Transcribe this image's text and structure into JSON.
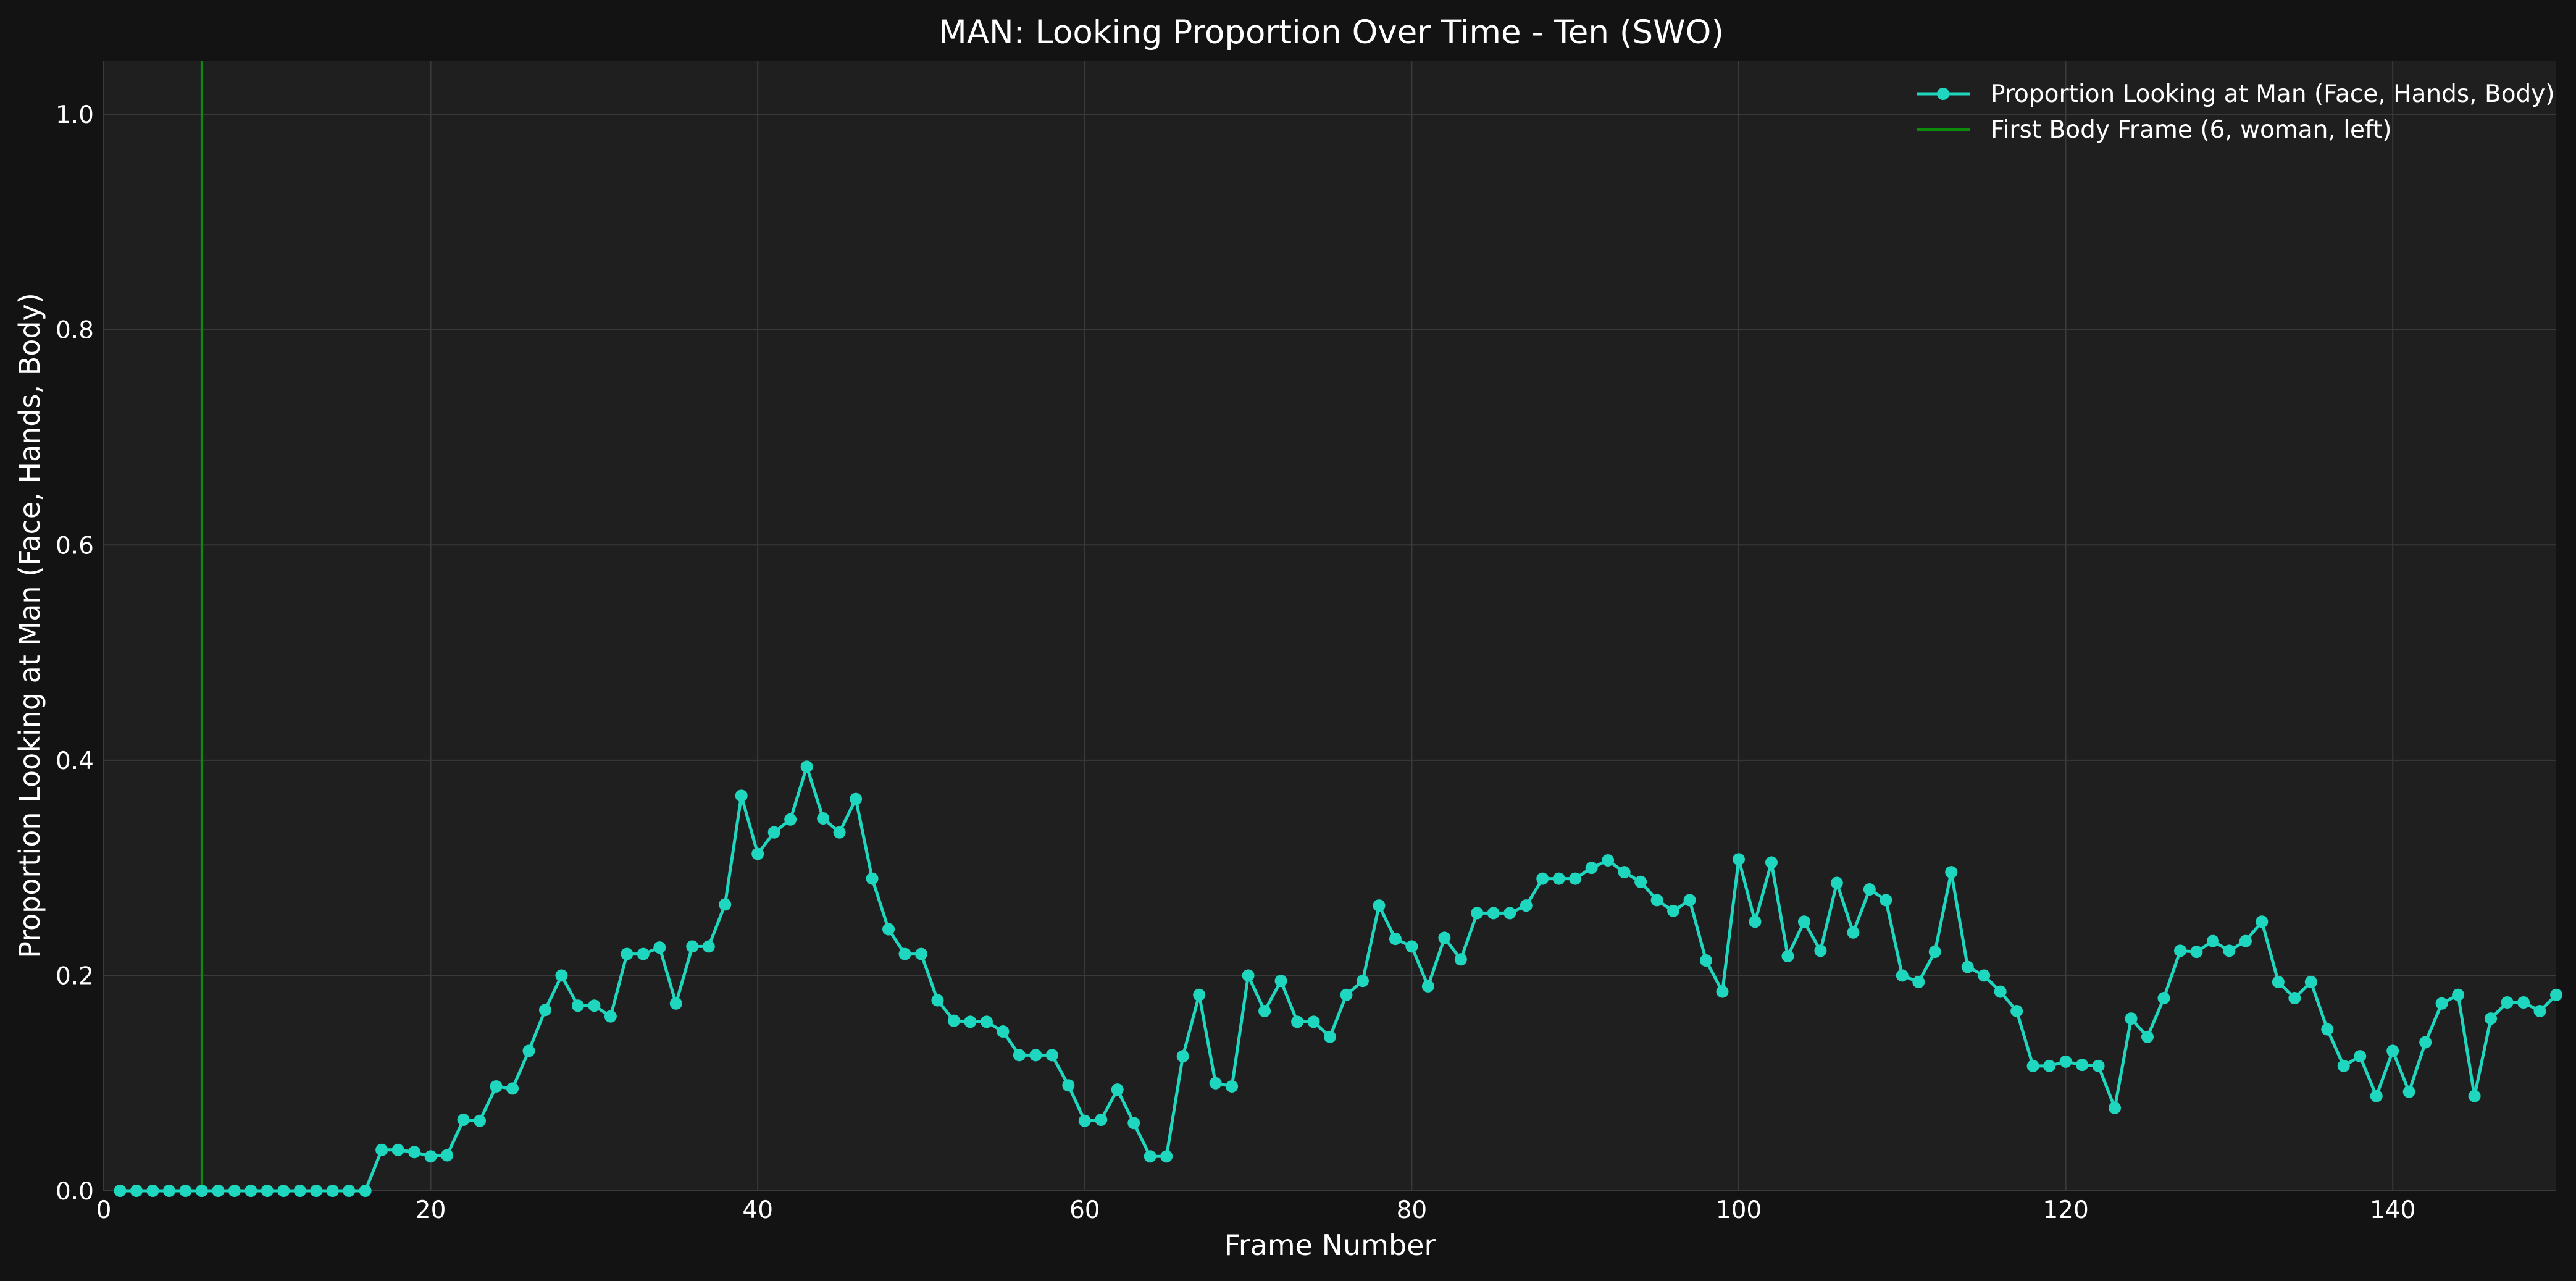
{
  "chart_data": {
    "type": "line",
    "title": "MAN: Looking Proportion Over Time - Ten (SWO)",
    "xlabel": "Frame Number",
    "ylabel": "Proportion Looking at Man (Face, Hands, Body)",
    "xlim": [
      0,
      150
    ],
    "ylim": [
      0,
      1.05
    ],
    "xticks": [
      0,
      20,
      40,
      60,
      80,
      100,
      120,
      140
    ],
    "yticks": [
      0.0,
      0.2,
      0.4,
      0.6,
      0.8,
      1.0
    ],
    "grid": true,
    "legend_position": "top-right",
    "series": [
      {
        "name": "Proportion Looking at Man (Face, Hands, Body)",
        "color": "#1fd6bf",
        "marker": "circle",
        "x": [
          1,
          2,
          3,
          4,
          5,
          6,
          7,
          8,
          9,
          10,
          11,
          12,
          13,
          14,
          15,
          16,
          17,
          18,
          19,
          20,
          21,
          22,
          23,
          24,
          25,
          26,
          27,
          28,
          29,
          30,
          31,
          32,
          33,
          34,
          35,
          36,
          37,
          38,
          39,
          40,
          41,
          42,
          43,
          44,
          45,
          46,
          47,
          48,
          49,
          50,
          51,
          52,
          53,
          54,
          55,
          56,
          57,
          58,
          59,
          60,
          61,
          62,
          63,
          64,
          65,
          66,
          67,
          68,
          69,
          70,
          71,
          72,
          73,
          74,
          75,
          76,
          77,
          78,
          79,
          80,
          81,
          82,
          83,
          84,
          85,
          86,
          87,
          88,
          89,
          90,
          91,
          92,
          93,
          94,
          95,
          96,
          97,
          98,
          99,
          100,
          101,
          102,
          103,
          104,
          105,
          106,
          107,
          108,
          109,
          110,
          111,
          112,
          113,
          114,
          115,
          116,
          117,
          118,
          119,
          120,
          121,
          122,
          123,
          124,
          125,
          126,
          127,
          128,
          129,
          130,
          131,
          132,
          133,
          134,
          135,
          136,
          137,
          138,
          139,
          140,
          141,
          142,
          143,
          144,
          145,
          146,
          147,
          148,
          149,
          150
        ],
        "y": [
          0,
          0,
          0,
          0,
          0,
          0,
          0,
          0,
          0,
          0,
          0,
          0,
          0,
          0,
          0,
          0,
          0.038,
          0.038,
          0.036,
          0.032,
          0.033,
          0.066,
          0.065,
          0.097,
          0.095,
          0.13,
          0.168,
          0.2,
          0.172,
          0.172,
          0.162,
          0.22,
          0.22,
          0.226,
          0.174,
          0.227,
          0.227,
          0.266,
          0.367,
          0.313,
          0.333,
          0.345,
          0.394,
          0.346,
          0.333,
          0.364,
          0.29,
          0.243,
          0.22,
          0.22,
          0.177,
          0.158,
          0.157,
          0.157,
          0.148,
          0.126,
          0.126,
          0.126,
          0.098,
          0.065,
          0.066,
          0.094,
          0.063,
          0.032,
          0.032,
          0.125,
          0.182,
          0.1,
          0.097,
          0.2,
          0.167,
          0.195,
          0.157,
          0.157,
          0.143,
          0.182,
          0.195,
          0.265,
          0.234,
          0.227,
          0.19,
          0.235,
          0.215,
          0.258,
          0.258,
          0.258,
          0.265,
          0.29,
          0.29,
          0.29,
          0.3,
          0.307,
          0.296,
          0.287,
          0.27,
          0.26,
          0.27,
          0.214,
          0.185,
          0.308,
          0.25,
          0.305,
          0.218,
          0.25,
          0.223,
          0.286,
          0.24,
          0.28,
          0.27,
          0.2,
          0.194,
          0.222,
          0.296,
          0.208,
          0.2,
          0.185,
          0.167,
          0.116,
          0.116,
          0.12,
          0.117,
          0.116,
          0.077,
          0.16,
          0.143,
          0.179,
          0.223,
          0.222,
          0.232,
          0.223,
          0.232,
          0.25,
          0.194,
          0.179,
          0.194,
          0.15,
          0.116,
          0.125,
          0.088,
          0.13,
          0.092,
          0.138,
          0.174,
          0.182,
          0.088,
          0.16,
          0.175,
          0.175,
          0.167,
          0.182
        ]
      },
      {
        "name": "First Body Frame (6, woman, left)",
        "color": "#0c8a0c",
        "type": "vline",
        "x": 6
      }
    ]
  }
}
